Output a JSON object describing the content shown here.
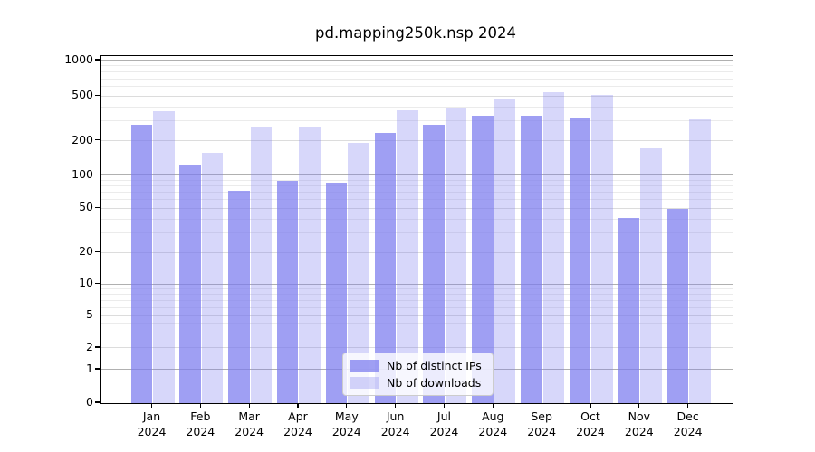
{
  "title": "pd.mapping250k.nsp 2024",
  "legend": {
    "items": [
      {
        "label": "Nb of distinct IPs",
        "color": "rgba(122,122,238,0.72)"
      },
      {
        "label": "Nb of downloads",
        "color": "rgba(122,122,238,0.30)"
      }
    ]
  },
  "colors": {
    "bar_base": "#7a7aee",
    "series_alpha": [
      0.72,
      0.3
    ],
    "grid_major": "#b0b0b0",
    "grid_labeled": "#dcdcdc",
    "grid_minor": "#ebebeb",
    "axis": "#000000"
  },
  "chart_data": {
    "type": "bar",
    "title": "pd.mapping250k.nsp 2024",
    "categories": [
      "Jan 2024",
      "Feb 2024",
      "Mar 2024",
      "Apr 2024",
      "May 2024",
      "Jun 2024",
      "Jul 2024",
      "Aug 2024",
      "Sep 2024",
      "Oct 2024",
      "Nov 2024",
      "Dec 2024"
    ],
    "series": [
      {
        "name": "Nb of distinct IPs",
        "values": [
          280,
          121,
          72,
          88,
          85,
          235,
          277,
          333,
          334,
          315,
          41,
          49
        ]
      },
      {
        "name": "Nb of downloads",
        "values": [
          369,
          157,
          266,
          268,
          193,
          374,
          397,
          475,
          540,
          514,
          171,
          313
        ]
      }
    ],
    "ylabel": "",
    "xlabel": "",
    "yscale": "log-like with linear zero region",
    "yticks": [
      0,
      1,
      2,
      5,
      10,
      20,
      50,
      100,
      200,
      500,
      1000
    ],
    "ylim": [
      0,
      1100
    ],
    "grid": true,
    "legend_position": "lower center"
  }
}
